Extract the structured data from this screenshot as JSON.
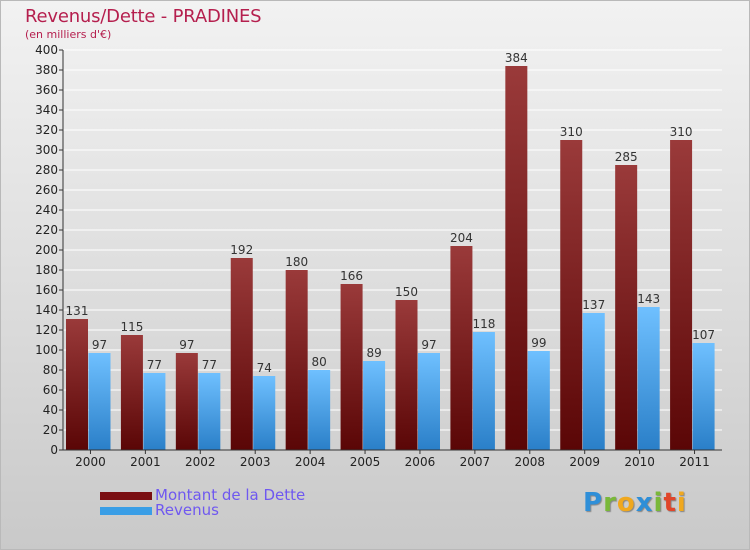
{
  "header": {
    "title": "Revenus/Dette - PRADINES",
    "subtitle": "(en milliers d'€)"
  },
  "legend": [
    {
      "label": "Montant de la Dette",
      "color": "#7a0f12"
    },
    {
      "label": "Revenus",
      "color": "#3a9ee6"
    }
  ],
  "logo": {
    "text": "Proxiti",
    "letters": [
      {
        "ch": "P",
        "color": "#2f8fd8"
      },
      {
        "ch": "r",
        "color": "#7ab83a"
      },
      {
        "ch": "o",
        "color": "#f0a81e"
      },
      {
        "ch": "x",
        "color": "#2f8fd8"
      },
      {
        "ch": "i",
        "color": "#7ab83a"
      },
      {
        "ch": "t",
        "color": "#e0452a"
      },
      {
        "ch": "i",
        "color": "#f0a81e"
      }
    ]
  },
  "colors": {
    "debt_light": "#9a3a3a",
    "debt_dark": "#5a0606",
    "revenue_light": "#6fc0ff",
    "revenue_dark": "#2a7fc8",
    "axis": "#333333",
    "grid": "#ffffff"
  },
  "chart_data": {
    "type": "bar",
    "title": "Revenus/Dette - PRADINES",
    "ylabel": "(en milliers d'€)",
    "ylim": [
      0,
      400
    ],
    "yticks": [
      0,
      20,
      40,
      60,
      80,
      100,
      120,
      140,
      160,
      180,
      200,
      220,
      240,
      260,
      280,
      300,
      320,
      340,
      360,
      380,
      400
    ],
    "grid": true,
    "categories": [
      "2000",
      "2001",
      "2002",
      "2003",
      "2004",
      "2005",
      "2006",
      "2007",
      "2008",
      "2009",
      "2010",
      "2011"
    ],
    "series": [
      {
        "name": "Montant de la Dette",
        "values": [
          131,
          115,
          97,
          192,
          180,
          166,
          150,
          204,
          384,
          310,
          285,
          310
        ]
      },
      {
        "name": "Revenus",
        "values": [
          97,
          77,
          77,
          74,
          80,
          89,
          97,
          118,
          99,
          137,
          143,
          107
        ]
      }
    ]
  }
}
